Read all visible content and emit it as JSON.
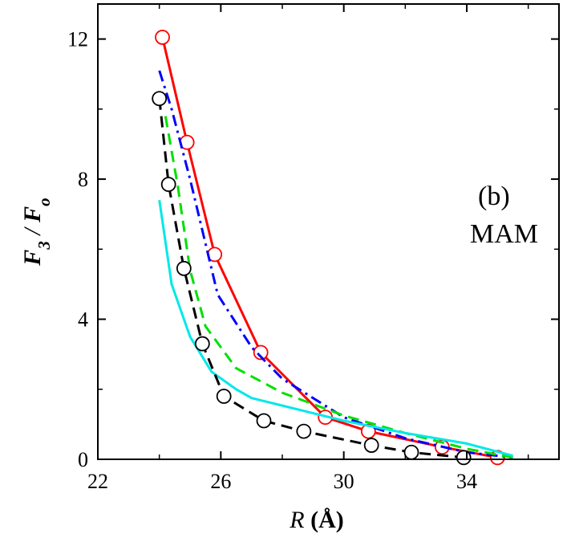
{
  "chart_data": {
    "type": "line",
    "xlabel": "R (Å)",
    "ylabel": "F3 / Fo",
    "xlim": [
      22,
      37
    ],
    "ylim": [
      0,
      13
    ],
    "xticks": [
      22,
      26,
      30,
      34
    ],
    "yticks": [
      0,
      4,
      8,
      12
    ],
    "annotations": [
      "(b)",
      "MAM"
    ],
    "series": [
      {
        "color": "#ff0000",
        "style": "solid-markers",
        "points": [
          [
            24.1,
            12.05
          ],
          [
            24.9,
            9.05
          ],
          [
            25.8,
            5.85
          ],
          [
            27.3,
            3.05
          ],
          [
            29.4,
            1.2
          ],
          [
            30.8,
            0.8
          ],
          [
            33.2,
            0.35
          ],
          [
            35.0,
            0.05
          ]
        ]
      },
      {
        "color": "#0000ff",
        "style": "dashdot",
        "points": [
          [
            24.0,
            11.1
          ],
          [
            24.4,
            10.0
          ],
          [
            25.0,
            8.0
          ],
          [
            25.9,
            4.7
          ],
          [
            27.0,
            3.2
          ],
          [
            28.0,
            2.3
          ],
          [
            30.0,
            1.2
          ],
          [
            32.0,
            0.6
          ],
          [
            34.0,
            0.2
          ],
          [
            35.5,
            0.05
          ]
        ]
      },
      {
        "color": "#00e000",
        "style": "dashed",
        "points": [
          [
            24.2,
            9.8
          ],
          [
            24.6,
            7.8
          ],
          [
            25.0,
            5.4
          ],
          [
            25.5,
            3.8
          ],
          [
            26.5,
            2.6
          ],
          [
            28.0,
            1.9
          ],
          [
            30.0,
            1.25
          ],
          [
            32.0,
            0.75
          ],
          [
            34.0,
            0.3
          ],
          [
            35.5,
            0.05
          ]
        ]
      },
      {
        "color": "#00e8e8",
        "style": "solid",
        "points": [
          [
            24.0,
            7.4
          ],
          [
            24.4,
            5.0
          ],
          [
            25.0,
            3.5
          ],
          [
            25.7,
            2.5
          ],
          [
            26.5,
            2.0
          ],
          [
            27.0,
            1.75
          ],
          [
            30.0,
            1.1
          ],
          [
            32.0,
            0.75
          ],
          [
            34.0,
            0.45
          ],
          [
            35.5,
            0.1
          ]
        ]
      },
      {
        "color": "#000000",
        "style": "dashed-markers",
        "points": [
          [
            24.0,
            10.3
          ],
          [
            24.3,
            7.85
          ],
          [
            24.8,
            5.45
          ],
          [
            25.4,
            3.3
          ],
          [
            26.1,
            1.8
          ],
          [
            27.4,
            1.1
          ],
          [
            28.7,
            0.8
          ],
          [
            30.9,
            0.4
          ],
          [
            32.2,
            0.2
          ],
          [
            33.9,
            0.05
          ]
        ]
      }
    ]
  }
}
